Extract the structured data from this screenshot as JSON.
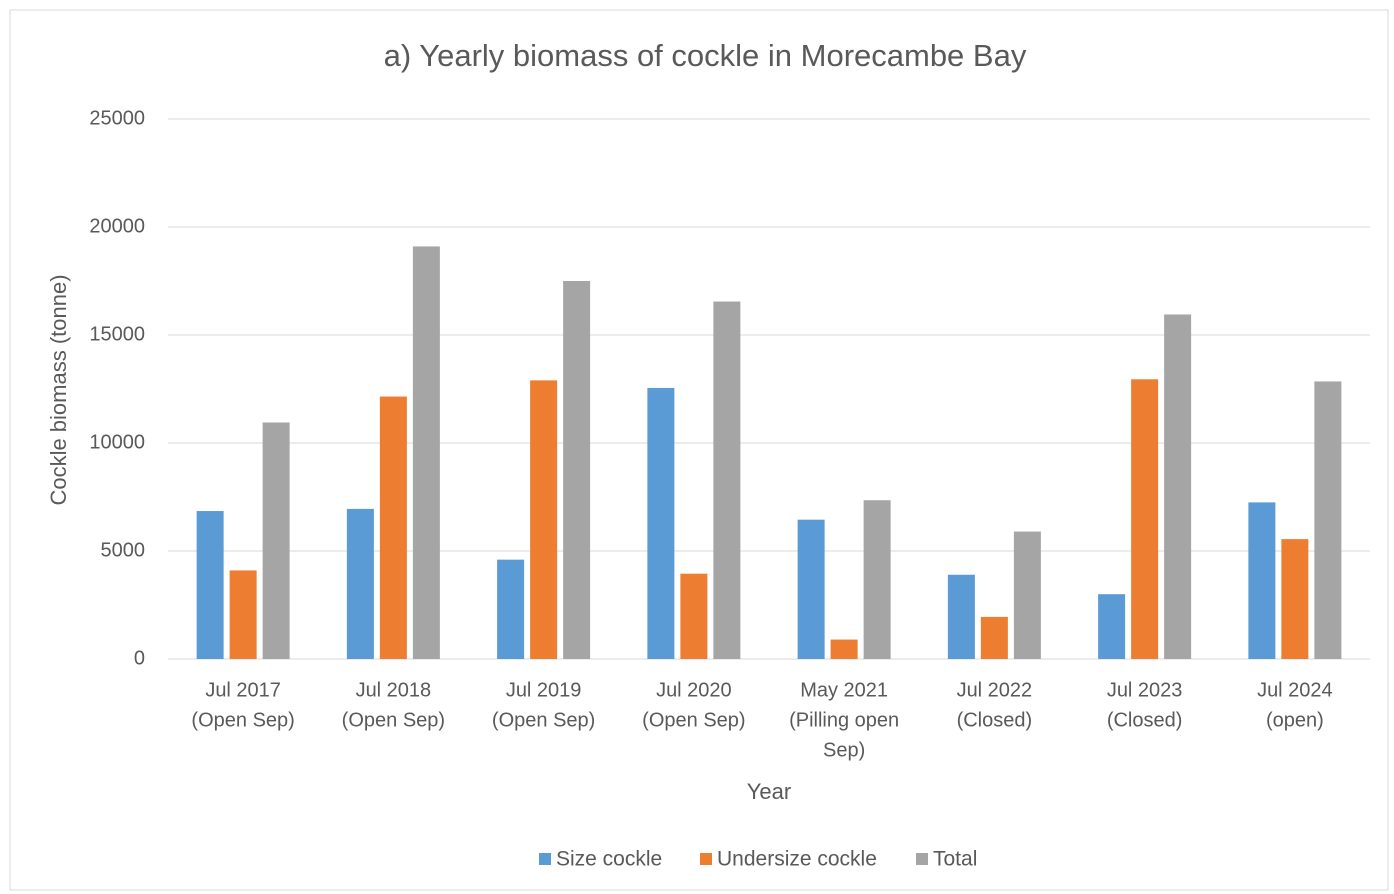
{
  "chart_data": {
    "type": "bar",
    "title": "a) Yearly biomass of cockle in Morecambe Bay",
    "x_label": "Year",
    "y_label": "Cockle biomass (tonne)",
    "categories": [
      [
        "Jul 2017",
        "(Open Sep)"
      ],
      [
        "Jul 2018",
        "(Open Sep)"
      ],
      [
        "Jul 2019",
        "(Open Sep)"
      ],
      [
        "Jul 2020",
        "(Open Sep)"
      ],
      [
        "May 2021",
        "(Pilling open",
        "Sep)"
      ],
      [
        "Jul 2022",
        "(Closed)"
      ],
      [
        "Jul 2023",
        "(Closed)"
      ],
      [
        "Jul 2024",
        "(open)"
      ]
    ],
    "series": [
      {
        "name": "Size cockle",
        "color": "#5b9bd5",
        "values": [
          6850,
          6950,
          4600,
          12550,
          6450,
          3900,
          3000,
          7250
        ]
      },
      {
        "name": "Undersize cockle",
        "color": "#ed7d31",
        "values": [
          4100,
          12150,
          12900,
          3950,
          900,
          1950,
          12950,
          5550
        ]
      },
      {
        "name": "Total",
        "color": "#a5a5a5",
        "values": [
          10950,
          19100,
          17500,
          16550,
          7350,
          5900,
          15950,
          12850
        ]
      }
    ],
    "ylim": [
      0,
      25000
    ],
    "yticks": [
      0,
      5000,
      10000,
      15000,
      20000,
      25000
    ],
    "grid": true,
    "legend": "bottom"
  }
}
